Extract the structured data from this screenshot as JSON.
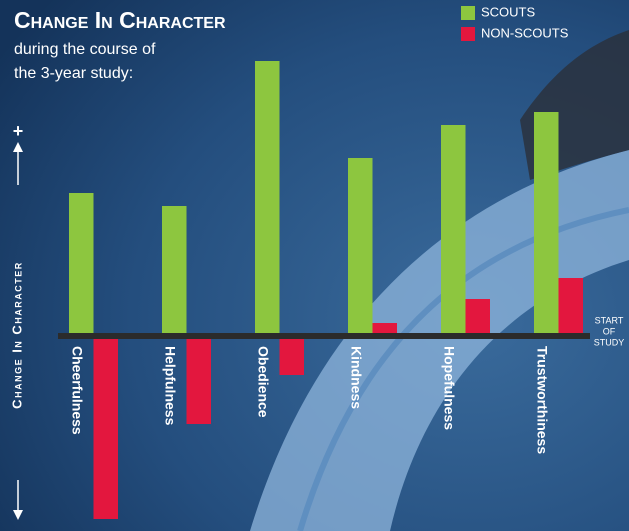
{
  "chart_data": {
    "type": "bar",
    "title": "Change In Character",
    "subtitle": [
      "during the course of",
      "the 3-year study:"
    ],
    "y_label": "Change In Character",
    "y_positive_marker": "+",
    "baseline_annotation": [
      "START",
      "OF",
      "STUDY"
    ],
    "categories": [
      "Cheerfulness",
      "Helpfulness",
      "Obedience",
      "Kindness",
      "Hopefulness",
      "Trustworthiness"
    ],
    "series": [
      {
        "name": "SCOUTS",
        "color": "#8dc63f",
        "values": [
          143,
          130,
          275,
          178,
          211,
          224
        ]
      },
      {
        "name": "NON-SCOUTS",
        "color": "#e3173e",
        "values": [
          -183,
          -88,
          -39,
          13,
          37,
          58
        ]
      }
    ],
    "ylim": [
      -190,
      285
    ],
    "legend": "top-right"
  }
}
